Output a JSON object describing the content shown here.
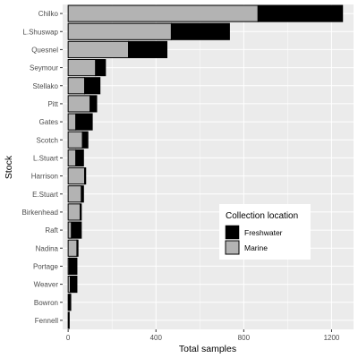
{
  "chart_data": {
    "type": "bar",
    "orientation": "horizontal",
    "stacked": true,
    "xlabel": "Total samples",
    "ylabel": "Stock",
    "xlim": [
      -25,
      1300
    ],
    "xticks": [
      0,
      400,
      800,
      1200
    ],
    "grid": true,
    "legend_position": "inside-right",
    "categories": [
      "Chilko",
      "L.Shuswap",
      "Quesnel",
      "Seymour",
      "Stellako",
      "Pitt",
      "Gates",
      "Scotch",
      "L.Stuart",
      "Harrison",
      "E.Stuart",
      "Birkenhead",
      "Raft",
      "Nadina",
      "Portage",
      "Weaver",
      "Bowron",
      "Fennell"
    ],
    "series": [
      {
        "name": "Marine",
        "color": "#b3b3b3",
        "values": [
          865,
          470,
          275,
          125,
          75,
          100,
          35,
          65,
          35,
          75,
          60,
          55,
          15,
          40,
          5,
          10,
          0,
          0
        ]
      },
      {
        "name": "Freshwater",
        "color": "#000000",
        "values": [
          385,
          265,
          175,
          45,
          70,
          30,
          75,
          25,
          35,
          5,
          10,
          5,
          45,
          5,
          35,
          30,
          12,
          5
        ]
      }
    ],
    "legend": {
      "title": "Collection location",
      "items": [
        "Freshwater",
        "Marine"
      ]
    },
    "colors": {
      "panel_background": "#ebebeb",
      "grid_major": "#ffffff",
      "bar_outline": "#000000"
    }
  }
}
